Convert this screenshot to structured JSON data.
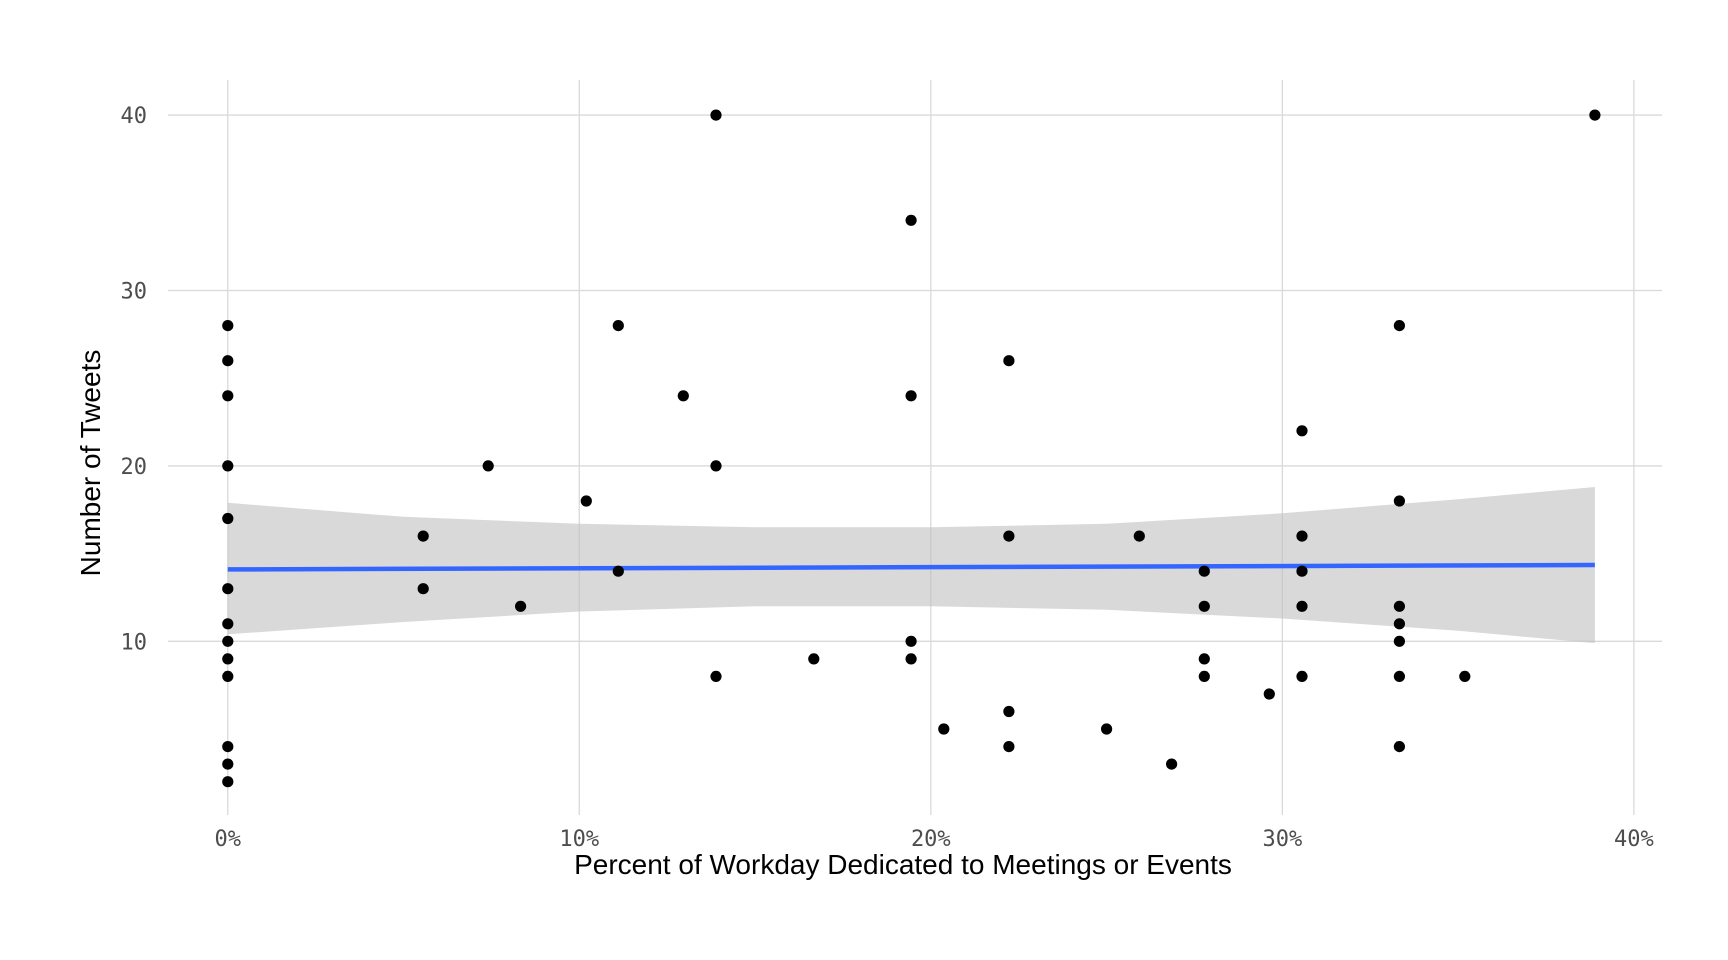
{
  "chart_data": {
    "type": "scatter",
    "title": "",
    "xlabel": "Percent of Workday Dedicated to Meetings or Events",
    "ylabel": "Number of Tweets",
    "xlim": [
      -0.017,
      0.408
    ],
    "ylim": [
      0.1,
      42
    ],
    "x_ticks": [
      0,
      0.1,
      0.2,
      0.3,
      0.4
    ],
    "x_tick_labels": [
      "0%",
      "10%",
      "20%",
      "30%",
      "40%"
    ],
    "y_ticks": [
      10,
      20,
      30,
      40
    ],
    "y_tick_labels": [
      "10",
      "20",
      "30",
      "40"
    ],
    "grid": true,
    "legend": "none",
    "colors": {
      "points": "#000000",
      "trend": "#3366ff",
      "ribbon": "#bfbfbf",
      "grid": "#d9d9d9"
    },
    "points": [
      [
        0,
        28
      ],
      [
        0,
        26
      ],
      [
        0,
        24
      ],
      [
        0,
        20
      ],
      [
        0,
        17
      ],
      [
        0,
        13
      ],
      [
        0,
        11
      ],
      [
        0,
        10
      ],
      [
        0,
        9
      ],
      [
        0,
        8
      ],
      [
        0,
        4
      ],
      [
        0,
        3
      ],
      [
        0,
        2
      ],
      [
        0.0556,
        16
      ],
      [
        0.0556,
        13
      ],
      [
        0.0741,
        20
      ],
      [
        0.0833,
        12
      ],
      [
        0.102,
        18
      ],
      [
        0.1111,
        28
      ],
      [
        0.1111,
        14
      ],
      [
        0.1296,
        24
      ],
      [
        0.1389,
        40
      ],
      [
        0.1389,
        20
      ],
      [
        0.1389,
        8
      ],
      [
        0.1667,
        9
      ],
      [
        0.1944,
        34
      ],
      [
        0.1944,
        24
      ],
      [
        0.1944,
        10
      ],
      [
        0.1944,
        9
      ],
      [
        0.2037,
        5
      ],
      [
        0.2222,
        26
      ],
      [
        0.2222,
        16
      ],
      [
        0.2222,
        6
      ],
      [
        0.2222,
        4
      ],
      [
        0.25,
        5
      ],
      [
        0.2593,
        16
      ],
      [
        0.2685,
        3
      ],
      [
        0.2778,
        14
      ],
      [
        0.2778,
        12
      ],
      [
        0.2778,
        9
      ],
      [
        0.2778,
        8
      ],
      [
        0.2963,
        7
      ],
      [
        0.3056,
        22
      ],
      [
        0.3056,
        16
      ],
      [
        0.3056,
        14
      ],
      [
        0.3056,
        12
      ],
      [
        0.3056,
        8
      ],
      [
        0.3333,
        28
      ],
      [
        0.3333,
        18
      ],
      [
        0.3333,
        12
      ],
      [
        0.3333,
        11
      ],
      [
        0.3333,
        10
      ],
      [
        0.3333,
        8
      ],
      [
        0.3333,
        4
      ],
      [
        0.3519,
        8
      ],
      [
        0.3889,
        40
      ]
    ],
    "trend_line": {
      "x": [
        0,
        0.3889
      ],
      "y": [
        14.1,
        14.35
      ]
    },
    "confidence_band": {
      "x": [
        0,
        0.05,
        0.1,
        0.15,
        0.2,
        0.25,
        0.3,
        0.35,
        0.3889
      ],
      "upper": [
        17.9,
        17.1,
        16.7,
        16.5,
        16.5,
        16.7,
        17.3,
        18.1,
        18.8
      ],
      "lower": [
        10.4,
        11.1,
        11.7,
        12.0,
        12.0,
        11.8,
        11.3,
        10.6,
        9.9
      ]
    }
  }
}
